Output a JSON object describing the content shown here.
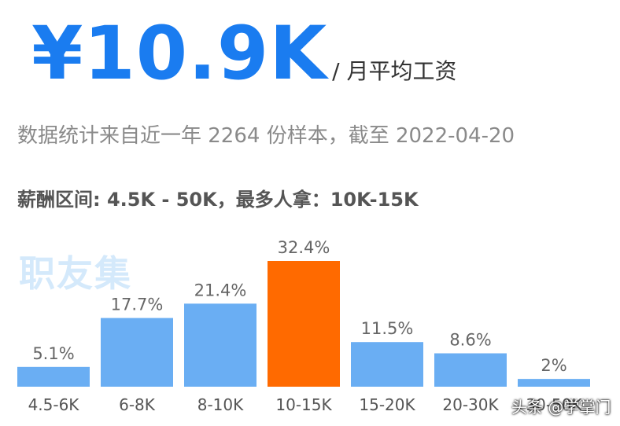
{
  "header": {
    "salary_value": "¥10.9K",
    "salary_unit": "/ 月平均工资",
    "stats_note": "数据统计来自近一年 2264 份样本，截至 2022-04-20",
    "range_note": "薪酬区间: 4.5K - 50K，最多人拿：10K-15K",
    "watermark": "职友集"
  },
  "credit": "头条 @学掌门",
  "colors": {
    "accent": "#1a7cf0",
    "bar": "#6aaef3",
    "highlight": "#ff6a00"
  },
  "chart_data": {
    "type": "bar",
    "categories": [
      "4.5-6K",
      "6-8K",
      "8-10K",
      "10-15K",
      "15-20K",
      "20-30K",
      "30-50K"
    ],
    "values": [
      5.1,
      17.7,
      21.4,
      32.4,
      11.5,
      8.6,
      2
    ],
    "value_labels": [
      "5.1%",
      "17.7%",
      "21.4%",
      "32.4%",
      "11.5%",
      "8.6%",
      "2%"
    ],
    "highlight_index": 3,
    "ylim": [
      0,
      32.4
    ],
    "title": "",
    "xlabel": "",
    "ylabel": ""
  }
}
